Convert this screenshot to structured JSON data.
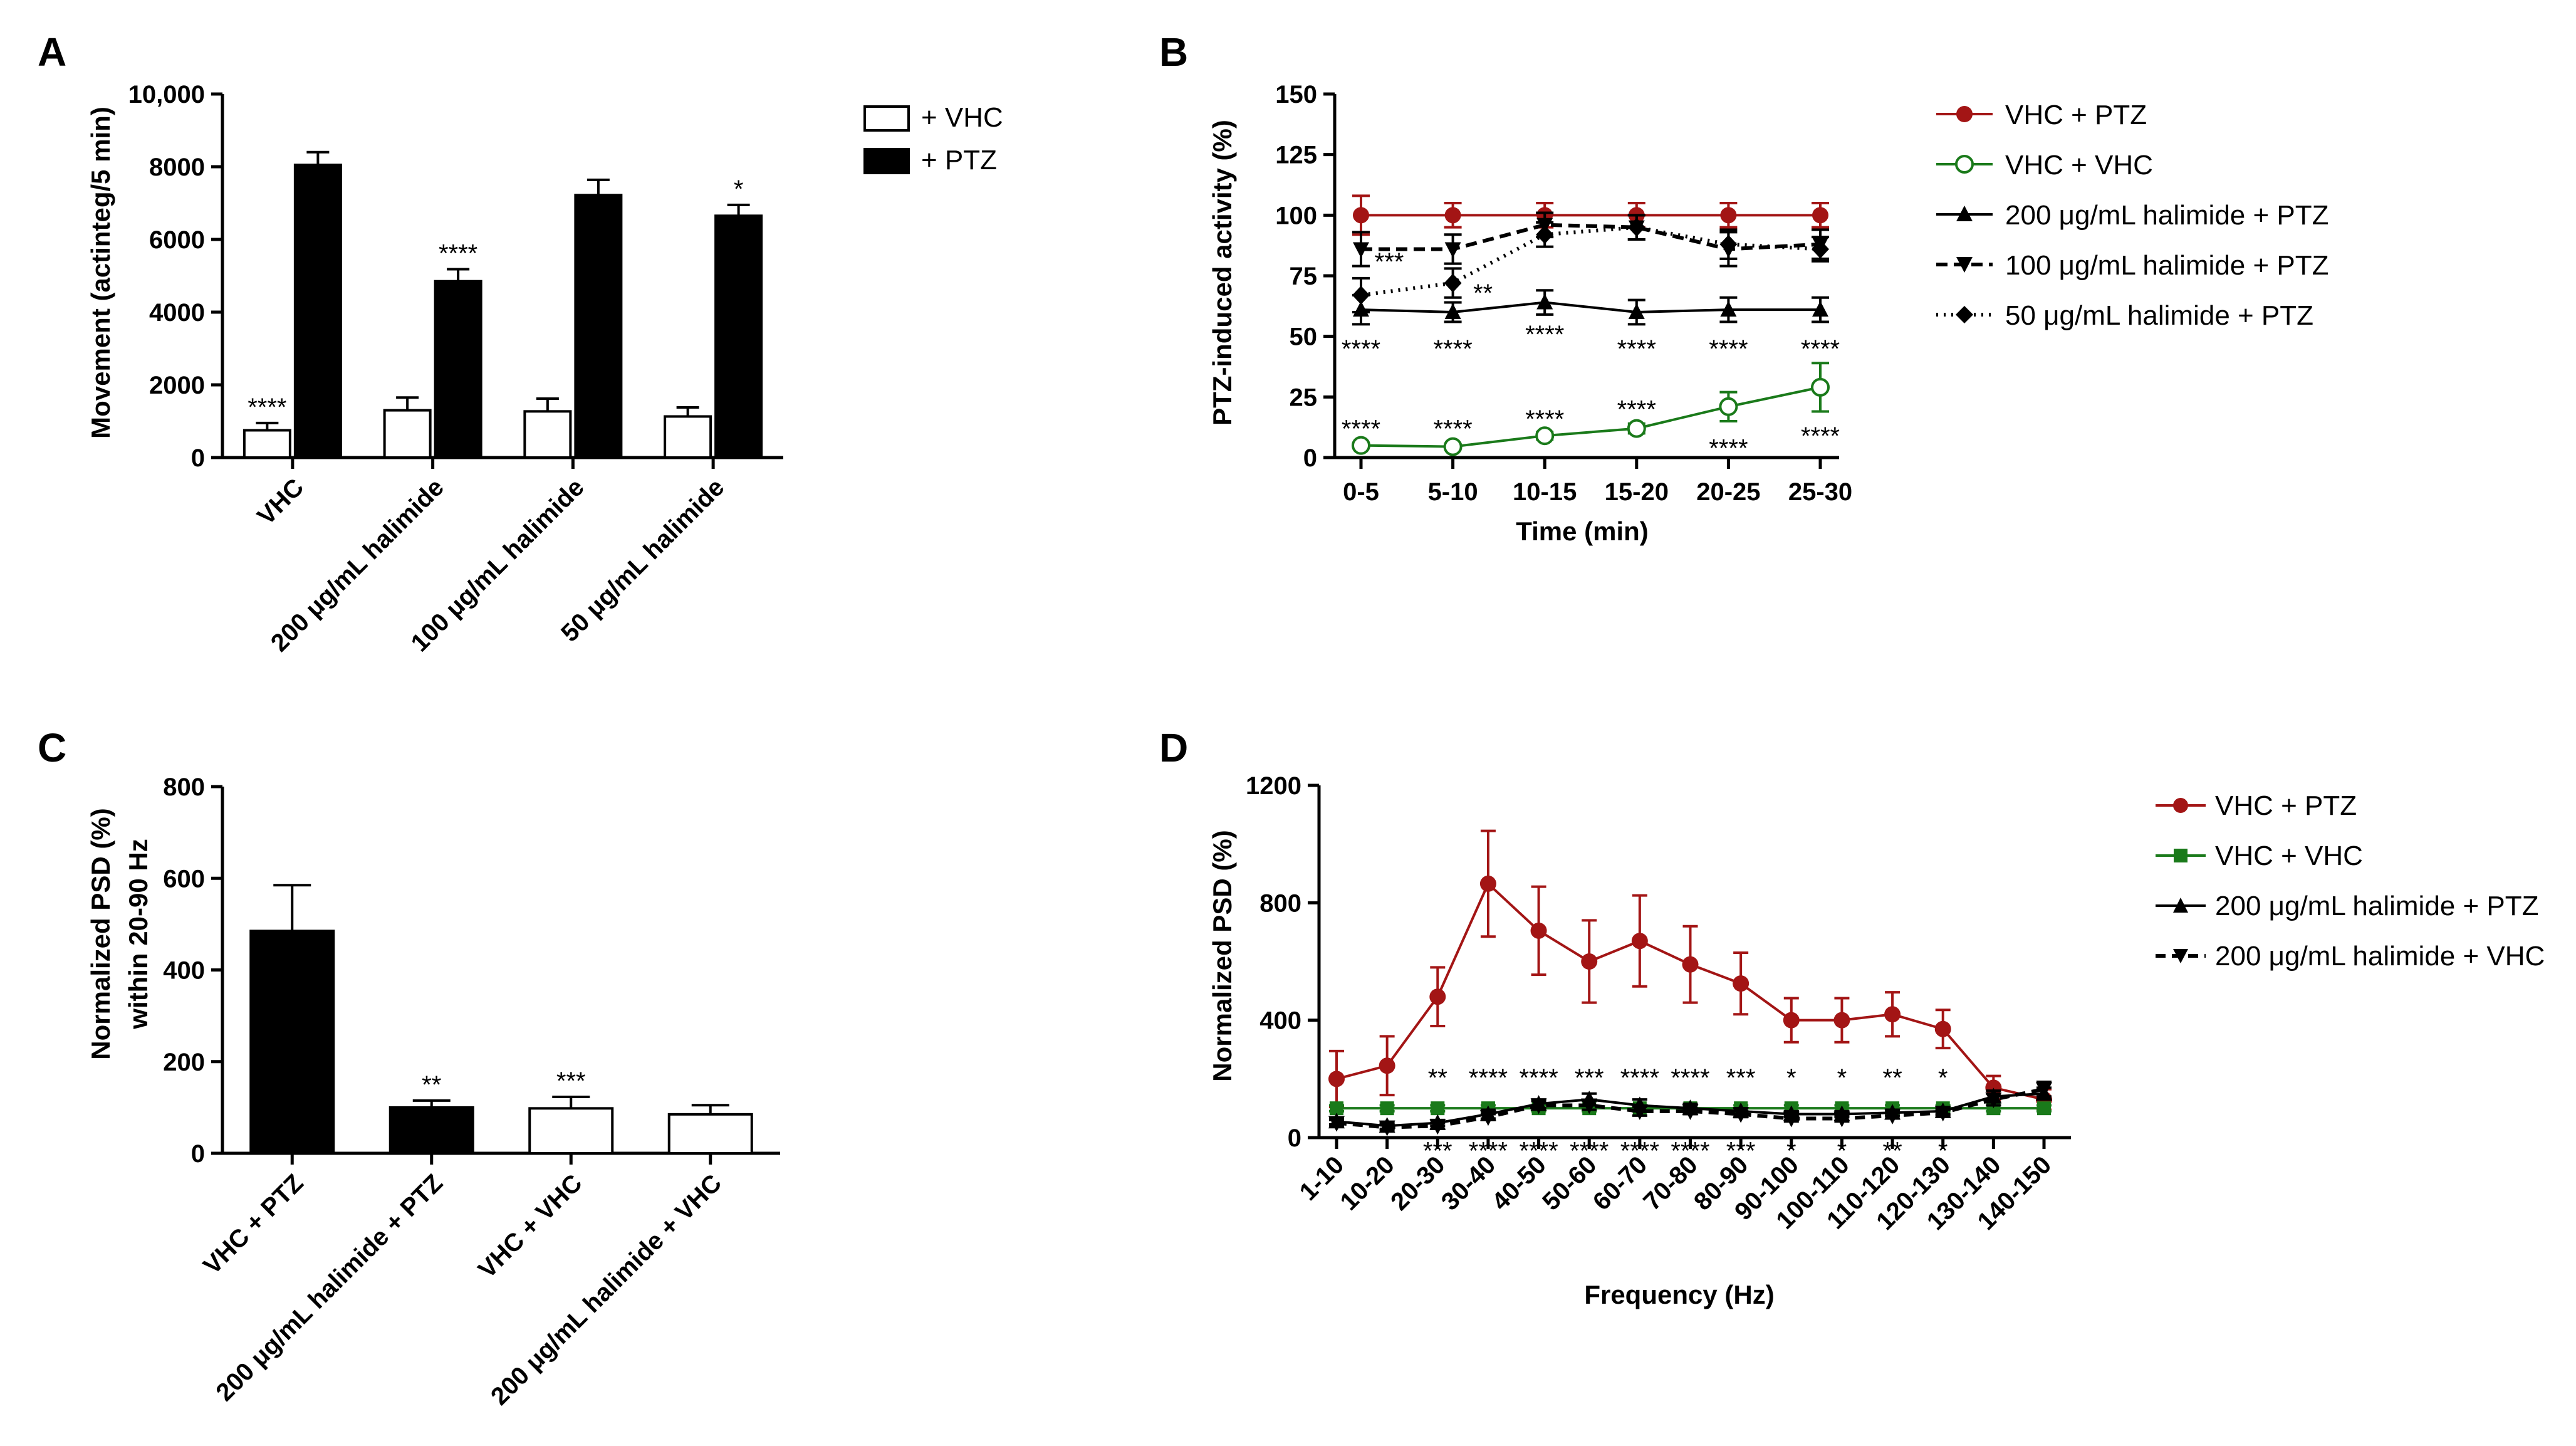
{
  "colors": {
    "ptz_red": "#a31515",
    "vhc_green": "#1a7a1a",
    "black": "#000000"
  },
  "chart_data": [
    {
      "panel": "A",
      "type": "bar",
      "title": "",
      "ylabel": "Movement (actinteg/5 min)",
      "ylim": [
        0,
        10000
      ],
      "yticks": [
        0,
        2000,
        4000,
        6000,
        8000,
        10000
      ],
      "ytick_labels": [
        "0",
        "2000",
        "4000",
        "6000",
        "8000",
        "10,000"
      ],
      "categories": [
        "VHC",
        "200 μg/mL halimide",
        "100 μg/mL halimide",
        "50 μg/mL halimide"
      ],
      "series": [
        {
          "name": "+ VHC",
          "fill": "white",
          "values": [
            750,
            1300,
            1270,
            1130
          ],
          "errors": [
            200,
            350,
            350,
            250
          ],
          "stars": [
            "****",
            "",
            "",
            ""
          ]
        },
        {
          "name": "+ PTZ",
          "fill": "black",
          "values": [
            8050,
            4850,
            7220,
            6650
          ],
          "errors": [
            350,
            330,
            420,
            300
          ],
          "stars": [
            "",
            "****",
            "",
            "*"
          ]
        }
      ],
      "legend": [
        "+ VHC",
        "+ PTZ"
      ]
    },
    {
      "panel": "B",
      "type": "line",
      "ylabel": "PTZ-induced activity (%)",
      "xlabel": "Time (min)",
      "ylim": [
        0,
        150
      ],
      "yticks": [
        0,
        25,
        50,
        75,
        100,
        125,
        150
      ],
      "categories": [
        "0-5",
        "5-10",
        "10-15",
        "15-20",
        "20-25",
        "25-30"
      ],
      "series": [
        {
          "name": "VHC + PTZ",
          "values": [
            100,
            100,
            100,
            100,
            100,
            100
          ],
          "errors": [
            8,
            5,
            5,
            5,
            5,
            5
          ]
        },
        {
          "name": "VHC + VHC",
          "values": [
            5,
            4.5,
            9,
            12,
            21,
            29
          ],
          "errors": [
            1,
            1,
            1.5,
            2,
            6,
            10
          ]
        },
        {
          "name": "200 μg/mL halimide + PTZ",
          "values": [
            61,
            60,
            64,
            60,
            61,
            61
          ],
          "errors": [
            6,
            4,
            5,
            5,
            5,
            5
          ]
        },
        {
          "name": "100 μg/mL halimide + PTZ",
          "values": [
            86,
            86,
            96,
            95,
            86,
            88
          ],
          "errors": [
            7,
            6,
            5,
            5,
            7,
            6
          ]
        },
        {
          "name": "50 μg/mL halimide + PTZ",
          "values": [
            67,
            72,
            92,
            95,
            88,
            86
          ],
          "errors": [
            7,
            6,
            5,
            5,
            6,
            5
          ]
        }
      ],
      "annotations": [
        {
          "x": "0-5",
          "y": 81,
          "text": "***"
        },
        {
          "x": "5-10",
          "y": 68,
          "text": "**"
        },
        {
          "x": "0-5",
          "y": 45,
          "text": "****"
        },
        {
          "x": "5-10",
          "y": 45,
          "text": "****"
        },
        {
          "x": "10-15",
          "y": 51,
          "text": "****"
        },
        {
          "x": "15-20",
          "y": 45,
          "text": "****"
        },
        {
          "x": "20-25",
          "y": 45,
          "text": "****"
        },
        {
          "x": "25-30",
          "y": 45,
          "text": "****"
        },
        {
          "x": "0-5",
          "y": 12,
          "text": "****"
        },
        {
          "x": "5-10",
          "y": 12,
          "text": "****"
        },
        {
          "x": "10-15",
          "y": 16,
          "text": "****"
        },
        {
          "x": "15-20",
          "y": 20,
          "text": "****"
        },
        {
          "x": "20-25",
          "y": 4,
          "text": "****"
        },
        {
          "x": "25-30",
          "y": 9,
          "text": "****"
        }
      ]
    },
    {
      "panel": "C",
      "type": "bar",
      "ylabel": "Normalized PSD (%)",
      "ylabel2": "within 20-90 Hz",
      "ylim": [
        0,
        800
      ],
      "yticks": [
        0,
        200,
        400,
        600,
        800
      ],
      "categories": [
        "VHC + PTZ",
        "200 μg/mL halimide + PTZ",
        "VHC + VHC",
        "200 μg/mL halimide + VHC"
      ],
      "values": [
        485,
        100,
        98,
        85
      ],
      "errors": [
        100,
        15,
        25,
        20
      ],
      "fills": [
        "black",
        "black",
        "white",
        "white"
      ],
      "stars": [
        "",
        "**",
        "***",
        ""
      ]
    },
    {
      "panel": "D",
      "type": "line",
      "ylabel": "Normalized PSD (%)",
      "xlabel": "Frequency (Hz)",
      "ylim": [
        0,
        1200
      ],
      "yticks": [
        0,
        400,
        800,
        1200
      ],
      "categories": [
        "1-10",
        "10-20",
        "20-30",
        "30-40",
        "40-50",
        "50-60",
        "60-70",
        "70-80",
        "80-90",
        "90-100",
        "100-110",
        "110-120",
        "120-130",
        "130-140",
        "140-150"
      ],
      "series": [
        {
          "name": "VHC + PTZ",
          "values": [
            200,
            245,
            480,
            865,
            705,
            600,
            670,
            590,
            525,
            400,
            400,
            420,
            370,
            170,
            130
          ],
          "errors": [
            95,
            100,
            100,
            180,
            150,
            140,
            155,
            130,
            105,
            75,
            75,
            75,
            65,
            40,
            35
          ]
        },
        {
          "name": "VHC + VHC",
          "values": [
            100,
            100,
            100,
            100,
            100,
            100,
            100,
            100,
            100,
            100,
            100,
            100,
            100,
            100,
            100
          ],
          "errors": [
            10,
            10,
            10,
            10,
            10,
            10,
            10,
            10,
            10,
            10,
            10,
            10,
            10,
            10,
            10
          ]
        },
        {
          "name": "200 μg/mL halimide + PTZ",
          "values": [
            55,
            40,
            50,
            80,
            115,
            130,
            110,
            100,
            90,
            80,
            80,
            85,
            90,
            140,
            150
          ],
          "errors": [
            10,
            10,
            10,
            15,
            15,
            20,
            20,
            15,
            10,
            10,
            10,
            10,
            10,
            20,
            20
          ]
        },
        {
          "name": "200 μg/mL halimide + VHC",
          "values": [
            50,
            35,
            40,
            70,
            110,
            110,
            90,
            90,
            80,
            65,
            65,
            75,
            85,
            130,
            165
          ],
          "errors": [
            10,
            10,
            10,
            10,
            15,
            15,
            15,
            10,
            10,
            10,
            10,
            10,
            10,
            20,
            25
          ]
        }
      ],
      "stars_above": [
        "",
        "",
        "**",
        "****",
        "****",
        "***",
        "****",
        "****",
        "***",
        "*",
        "*",
        "**",
        "*",
        "",
        ""
      ],
      "stars_below": [
        "",
        "",
        "***",
        "****",
        "****",
        "****",
        "****",
        "****",
        "***",
        "*",
        "*",
        "**",
        "*",
        "",
        ""
      ]
    }
  ],
  "panels": {
    "A": {
      "label": "A",
      "legend": [
        {
          "label": "+ VHC"
        },
        {
          "label": "+ PTZ"
        }
      ]
    },
    "B": {
      "label": "B",
      "legend": [
        {
          "label": "VHC + PTZ"
        },
        {
          "label": "VHC + VHC"
        },
        {
          "label": "200 μg/mL halimide + PTZ"
        },
        {
          "label": "100 μg/mL halimide + PTZ"
        },
        {
          "label": "50 μg/mL halimide + PTZ"
        }
      ]
    },
    "C": {
      "label": "C"
    },
    "D": {
      "label": "D",
      "legend": [
        {
          "label": "VHC + PTZ"
        },
        {
          "label": "VHC + VHC"
        },
        {
          "label": "200 μg/mL halimide + PTZ"
        },
        {
          "label": "200 μg/mL halimide + VHC"
        }
      ]
    }
  }
}
